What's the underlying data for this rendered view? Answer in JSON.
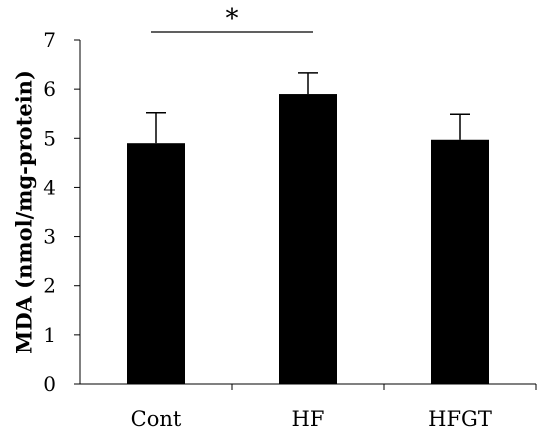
{
  "chart_data": {
    "type": "bar",
    "categories": [
      "Cont",
      "HF",
      "HFGT"
    ],
    "values": [
      4.9,
      5.9,
      4.97
    ],
    "error_bars": [
      0.62,
      0.43,
      0.52
    ],
    "xlabel": "",
    "ylabel": "MDA (nmol/mg-protein)",
    "ylim": [
      0,
      7
    ],
    "yticks": [
      "0",
      "1",
      "2",
      "3",
      "4",
      "5",
      "6",
      "7"
    ],
    "grid": false,
    "legend": "none",
    "bar_color": "#000000",
    "significance": {
      "from": "Cont",
      "to": "HF",
      "label": "*"
    }
  }
}
